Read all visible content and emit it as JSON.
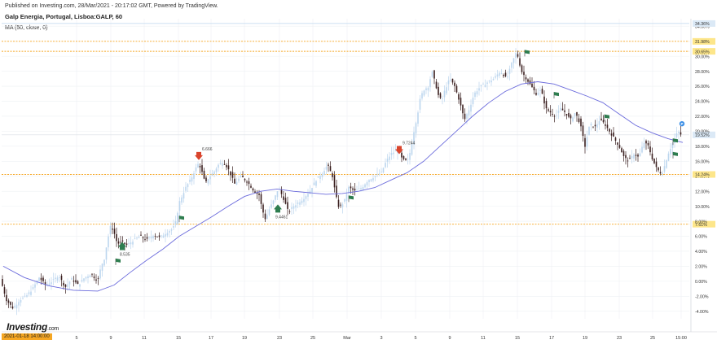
{
  "header": {
    "published": "Published on Investing.com, 28/Mar/2021 - 20:17:02 GMT, Powered by TradingView.",
    "symbol": "Galp Energia, Portugal, Lisboa:GALP, 60",
    "indicator": "MA (50, close, 0)"
  },
  "logo": {
    "main": "Investing",
    "suffix": ".com"
  },
  "cursor_date": "2021-01-18 14:00:00",
  "colors": {
    "up": "#bcd6ee",
    "down": "#3a1f1f",
    "ma": "#6b6bdc",
    "hline": "#f5a623",
    "grid": "#eef0f3",
    "label_bg": "#fde68a",
    "flag": "#2e7d4f",
    "arrow_down": "#d9442c",
    "arrow_up": "#2e7d4f",
    "last_price": "#dbe9f6"
  },
  "chart_data": {
    "type": "candlestick",
    "ylim": [
      -5,
      35
    ],
    "y_ticks": [
      "-4.00%",
      "-2.00%",
      "0.00%",
      "2.00%",
      "4.00%",
      "6.00%",
      "7.61%",
      "8.00%",
      "10.00%",
      "12.00%",
      "14.00%",
      "14.24%",
      "16.00%",
      "18.00%",
      "19.52%",
      "20.00%",
      "22.00%",
      "24.00%",
      "26.00%",
      "28.00%",
      "30.00%",
      "30.65%",
      "31.98%",
      "34.00%",
      "34.36%"
    ],
    "x_ticks": [
      "5",
      "9",
      "11",
      "15",
      "17",
      "19",
      "23",
      "25",
      "Mar",
      "3",
      "5",
      "9",
      "11",
      "15",
      "17",
      "19",
      "23",
      "25",
      "15:00"
    ],
    "horizontal_levels": [
      {
        "value": 31.98,
        "label": "31.98%"
      },
      {
        "value": 30.65,
        "label": "30.65%"
      },
      {
        "value": 14.24,
        "label": "14.24%"
      },
      {
        "value": 7.61,
        "label": "7.61%"
      }
    ],
    "top_level": {
      "value": 34.36,
      "label": "34.36%"
    },
    "last_price": {
      "value": 19.52,
      "label": "19.52%"
    },
    "annotations": [
      {
        "text": "8.535",
        "kind": "buy"
      },
      {
        "text": "6.666",
        "kind": "sell"
      },
      {
        "text": "9.4461",
        "kind": "buy"
      },
      {
        "text": "9.7244",
        "kind": "sell"
      }
    ],
    "flag_count": 8,
    "price_path": [
      [
        0,
        0.5
      ],
      [
        8,
        -2.5
      ],
      [
        16,
        -3.6
      ],
      [
        24,
        -2.5
      ],
      [
        32,
        -2.0
      ],
      [
        40,
        -1.0
      ],
      [
        48,
        0.5
      ],
      [
        56,
        -0.5
      ],
      [
        64,
        0.0
      ],
      [
        72,
        0.8
      ],
      [
        80,
        -0.8
      ],
      [
        88,
        0.3
      ],
      [
        96,
        -0.5
      ],
      [
        104,
        0.5
      ],
      [
        112,
        1.0
      ],
      [
        120,
        0.0
      ],
      [
        124,
        2.0
      ],
      [
        128,
        3.0
      ],
      [
        132,
        5.5
      ],
      [
        136,
        7.5
      ],
      [
        140,
        6.5
      ],
      [
        144,
        5.0
      ],
      [
        150,
        5.2
      ],
      [
        156,
        4.8
      ],
      [
        164,
        5.5
      ],
      [
        172,
        6.0
      ],
      [
        180,
        5.5
      ],
      [
        188,
        6.2
      ],
      [
        196,
        5.8
      ],
      [
        204,
        6.5
      ],
      [
        212,
        7.0
      ],
      [
        216,
        8.0
      ],
      [
        220,
        10.5
      ],
      [
        224,
        11.5
      ],
      [
        228,
        12.5
      ],
      [
        232,
        13.2
      ],
      [
        236,
        14.0
      ],
      [
        240,
        15.0
      ],
      [
        244,
        15.8
      ],
      [
        248,
        14.5
      ],
      [
        252,
        13.0
      ],
      [
        256,
        13.8
      ],
      [
        262,
        14.5
      ],
      [
        268,
        15.5
      ],
      [
        274,
        16.0
      ],
      [
        280,
        15.0
      ],
      [
        288,
        13.0
      ],
      [
        296,
        14.0
      ],
      [
        304,
        13.2
      ],
      [
        312,
        12.0
      ],
      [
        318,
        11.5
      ],
      [
        322,
        9.5
      ],
      [
        326,
        8.2
      ],
      [
        330,
        9.5
      ],
      [
        336,
        10.8
      ],
      [
        342,
        12.5
      ],
      [
        348,
        11.0
      ],
      [
        354,
        9.2
      ],
      [
        360,
        10.0
      ],
      [
        366,
        10.5
      ],
      [
        372,
        11.0
      ],
      [
        380,
        12.0
      ],
      [
        388,
        13.5
      ],
      [
        396,
        14.5
      ],
      [
        402,
        15.5
      ],
      [
        408,
        14.0
      ],
      [
        412,
        11.5
      ],
      [
        416,
        9.8
      ],
      [
        422,
        10.5
      ],
      [
        428,
        12.5
      ],
      [
        436,
        12.0
      ],
      [
        444,
        12.5
      ],
      [
        452,
        13.5
      ],
      [
        460,
        14.0
      ],
      [
        468,
        14.5
      ],
      [
        474,
        16.0
      ],
      [
        480,
        17.0
      ],
      [
        488,
        17.5
      ],
      [
        494,
        16.2
      ],
      [
        500,
        16.0
      ],
      [
        504,
        17.5
      ],
      [
        508,
        20.0
      ],
      [
        512,
        22.0
      ],
      [
        516,
        24.5
      ],
      [
        520,
        25.5
      ],
      [
        526,
        26.0
      ],
      [
        530,
        28.0
      ],
      [
        534,
        26.5
      ],
      [
        538,
        24.8
      ],
      [
        542,
        24.0
      ],
      [
        546,
        25.5
      ],
      [
        552,
        27.0
      ],
      [
        558,
        26.0
      ],
      [
        564,
        24.0
      ],
      [
        570,
        21.5
      ],
      [
        576,
        23.0
      ],
      [
        582,
        25.0
      ],
      [
        590,
        26.0
      ],
      [
        598,
        26.5
      ],
      [
        606,
        27.0
      ],
      [
        614,
        28.0
      ],
      [
        622,
        27.0
      ],
      [
        628,
        29.0
      ],
      [
        634,
        30.65
      ],
      [
        640,
        28.0
      ],
      [
        646,
        27.0
      ],
      [
        652,
        26.0
      ],
      [
        658,
        25.0
      ],
      [
        664,
        25.5
      ],
      [
        670,
        23.0
      ],
      [
        676,
        22.5
      ],
      [
        682,
        22.0
      ],
      [
        688,
        23.0
      ],
      [
        694,
        22.5
      ],
      [
        700,
        21.5
      ],
      [
        706,
        22.5
      ],
      [
        712,
        21.0
      ],
      [
        718,
        18.0
      ],
      [
        724,
        21.0
      ],
      [
        730,
        20.5
      ],
      [
        736,
        21.5
      ],
      [
        742,
        21.0
      ],
      [
        748,
        20.0
      ],
      [
        754,
        19.0
      ],
      [
        760,
        18.0
      ],
      [
        766,
        16.5
      ],
      [
        772,
        16.0
      ],
      [
        778,
        17.0
      ],
      [
        784,
        16.5
      ],
      [
        790,
        18.5
      ],
      [
        796,
        18.0
      ],
      [
        800,
        16.5
      ],
      [
        806,
        15.0
      ],
      [
        812,
        14.3
      ],
      [
        816,
        15.5
      ],
      [
        820,
        17.0
      ],
      [
        824,
        18.0
      ],
      [
        828,
        19.0
      ],
      [
        832,
        20.0
      ],
      [
        836,
        19.52
      ]
    ],
    "ma_path": [
      [
        4,
        2.0
      ],
      [
        30,
        0.5
      ],
      [
        60,
        -0.6
      ],
      [
        90,
        -1.2
      ],
      [
        120,
        -1.3
      ],
      [
        140,
        -0.5
      ],
      [
        160,
        1.2
      ],
      [
        180,
        2.8
      ],
      [
        200,
        4.3
      ],
      [
        220,
        6.0
      ],
      [
        240,
        7.3
      ],
      [
        260,
        8.6
      ],
      [
        280,
        10.0
      ],
      [
        300,
        11.3
      ],
      [
        320,
        12.0
      ],
      [
        340,
        12.3
      ],
      [
        360,
        12.0
      ],
      [
        380,
        11.8
      ],
      [
        400,
        11.6
      ],
      [
        420,
        11.7
      ],
      [
        440,
        12.0
      ],
      [
        460,
        12.5
      ],
      [
        480,
        13.5
      ],
      [
        500,
        14.5
      ],
      [
        520,
        16.0
      ],
      [
        540,
        18.0
      ],
      [
        560,
        20.0
      ],
      [
        580,
        22.0
      ],
      [
        600,
        23.8
      ],
      [
        620,
        25.3
      ],
      [
        640,
        26.3
      ],
      [
        660,
        26.6
      ],
      [
        680,
        26.3
      ],
      [
        700,
        25.5
      ],
      [
        720,
        24.7
      ],
      [
        740,
        23.8
      ],
      [
        760,
        22.3
      ],
      [
        780,
        20.8
      ],
      [
        800,
        19.8
      ],
      [
        820,
        19.0
      ],
      [
        838,
        18.5
      ]
    ]
  }
}
